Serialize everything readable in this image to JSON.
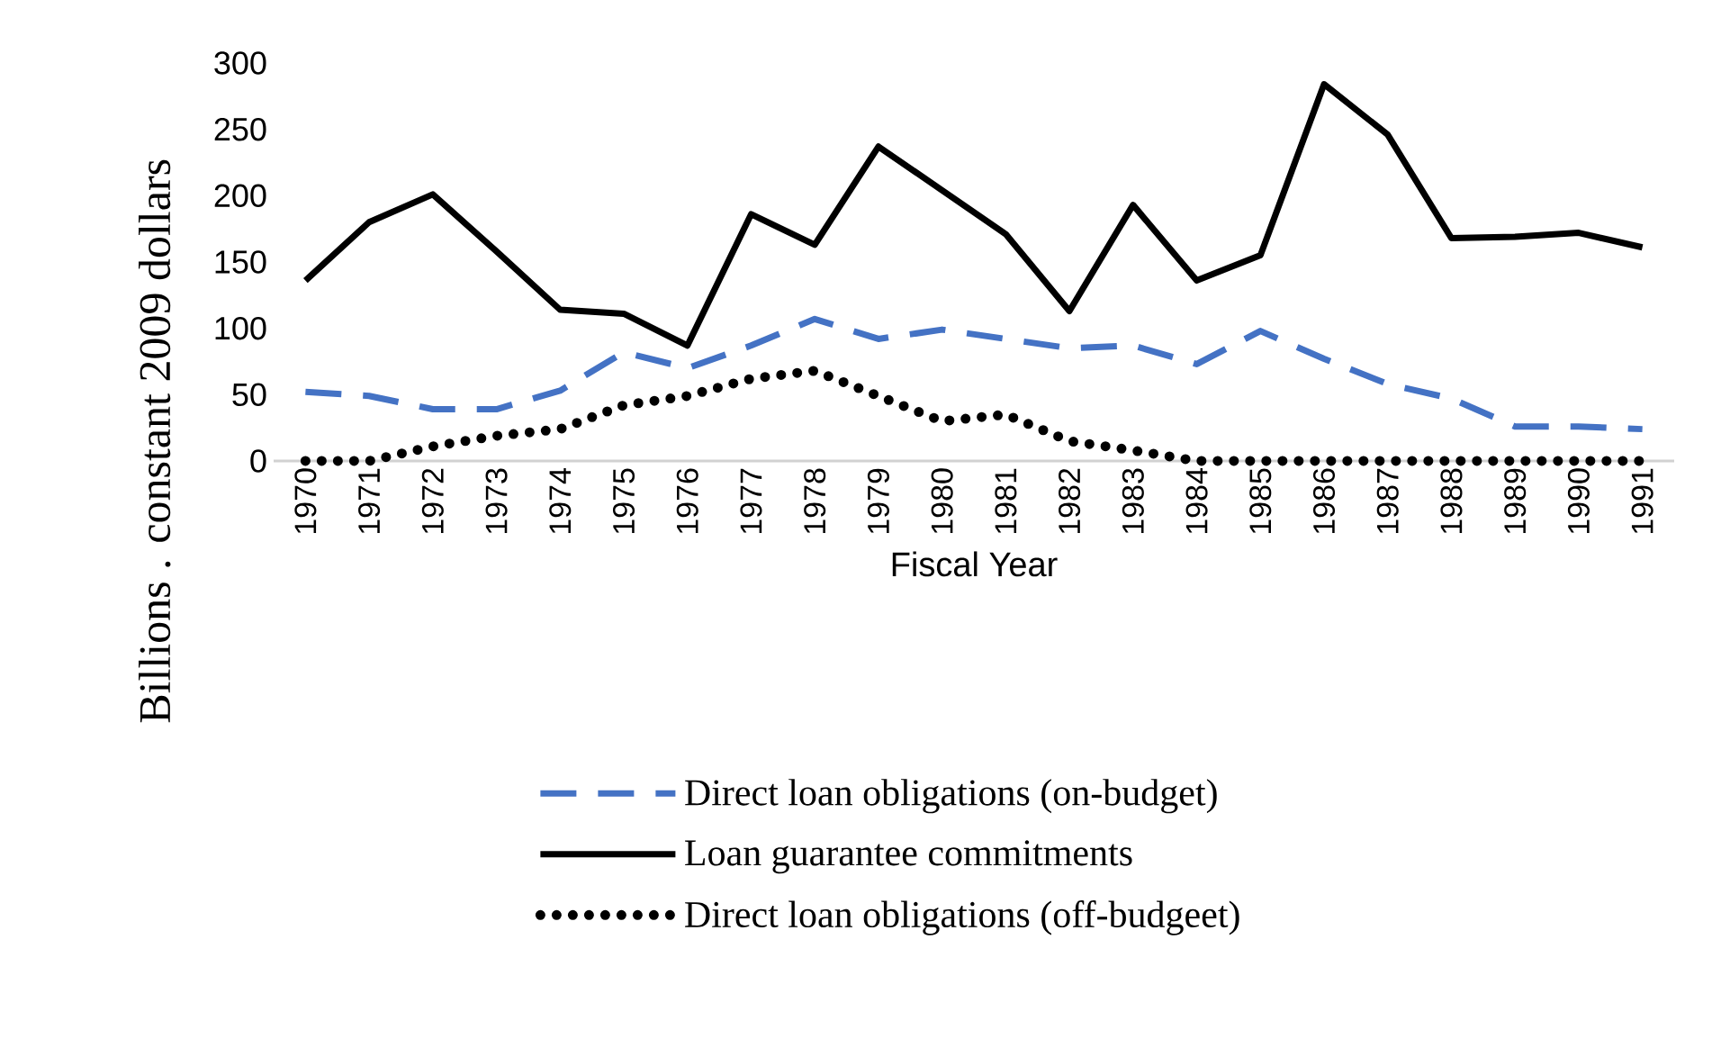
{
  "chart_data": {
    "type": "line",
    "xlabel": "Fiscal Year",
    "ylabel": "Billions . constant  2009 dollars",
    "categories": [
      "1970",
      "1971",
      "1972",
      "1973",
      "1974",
      "1975",
      "1976",
      "1977",
      "1978",
      "1979",
      "1980",
      "1981",
      "1982",
      "1983",
      "1984",
      "1985",
      "1986",
      "1987",
      "1988",
      "1989",
      "1990",
      "1991"
    ],
    "series": [
      {
        "name": "Direct loan obligations (on-budget)",
        "color": "#4472c4",
        "line_style": "dashed",
        "values": [
          52,
          49,
          39,
          39,
          53,
          82,
          70,
          87,
          107,
          92,
          99,
          92,
          85,
          87,
          73,
          98,
          77,
          58,
          47,
          26,
          26,
          24
        ]
      },
      {
        "name": "Loan guarantee commitments",
        "color": "#000000",
        "line_style": "solid",
        "values": [
          136,
          180,
          201,
          158,
          114,
          111,
          87,
          186,
          163,
          237,
          204,
          171,
          113,
          193,
          136,
          155,
          284,
          246,
          168,
          169,
          172,
          161
        ]
      },
      {
        "name": "Direct loan obligations (off-budgeet)",
        "color": "#000000",
        "line_style": "dotted",
        "values": [
          0,
          0,
          11,
          19,
          24,
          42,
          49,
          62,
          68,
          49,
          30,
          35,
          15,
          8,
          0,
          0,
          0,
          0,
          0,
          0,
          0,
          0
        ]
      }
    ],
    "ylim": [
      0,
      300
    ],
    "yticks": [
      0,
      50,
      100,
      150,
      200,
      250,
      300
    ],
    "grid": false,
    "legend": "bottom"
  }
}
